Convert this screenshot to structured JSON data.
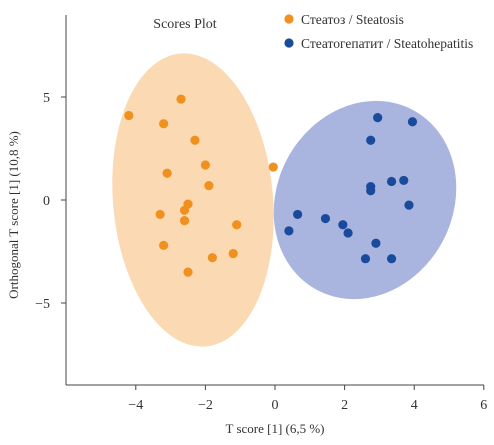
{
  "chart_data": {
    "type": "scatter",
    "title": "Scores Plot",
    "xlabel": "T score [1] (6,5 %)",
    "ylabel": "Orthogonal T score [1] (10,8 %)",
    "xlim": [
      -6,
      6
    ],
    "ylim": [
      -9,
      9.5
    ],
    "xticks": [
      -4,
      -2,
      0,
      2,
      4,
      6
    ],
    "xtick_labels": [
      "−4",
      "−2",
      "0",
      "2",
      "4",
      "6"
    ],
    "yticks": [
      5,
      0,
      -5
    ],
    "ytick_labels": [
      "5",
      "0",
      "−5"
    ],
    "grid": false,
    "legend_position": "top-right",
    "series": [
      {
        "name": "Стеатоз / Steatosis",
        "color": "#f0901f",
        "ellipse_color": "#fbd9b3",
        "points": [
          [
            -4.2,
            4.1
          ],
          [
            -2.7,
            4.9
          ],
          [
            -3.2,
            3.7
          ],
          [
            -2.3,
            2.9
          ],
          [
            -2.0,
            1.7
          ],
          [
            -3.1,
            1.3
          ],
          [
            -1.9,
            0.7
          ],
          [
            -0.05,
            1.6
          ],
          [
            -2.5,
            -0.2
          ],
          [
            -2.6,
            -0.5
          ],
          [
            -3.3,
            -0.7
          ],
          [
            -2.6,
            -1.0
          ],
          [
            -1.1,
            -1.2
          ],
          [
            -3.2,
            -2.2
          ],
          [
            -1.8,
            -2.8
          ],
          [
            -1.2,
            -2.6
          ],
          [
            -2.5,
            -3.5
          ]
        ]
      },
      {
        "name": "Стеатогепатит / Steatohepatitis",
        "color": "#1a4a9c",
        "ellipse_color": "#a9b5de",
        "points": [
          [
            2.95,
            4.0
          ],
          [
            3.95,
            3.8
          ],
          [
            2.75,
            2.9
          ],
          [
            3.35,
            0.9
          ],
          [
            3.7,
            0.95
          ],
          [
            2.75,
            0.65
          ],
          [
            2.75,
            0.45
          ],
          [
            3.85,
            -0.25
          ],
          [
            0.65,
            -0.7
          ],
          [
            1.45,
            -0.9
          ],
          [
            1.95,
            -1.2
          ],
          [
            2.1,
            -1.6
          ],
          [
            0.4,
            -1.5
          ],
          [
            2.9,
            -2.1
          ],
          [
            2.6,
            -2.85
          ],
          [
            3.35,
            -2.85
          ]
        ]
      }
    ]
  }
}
